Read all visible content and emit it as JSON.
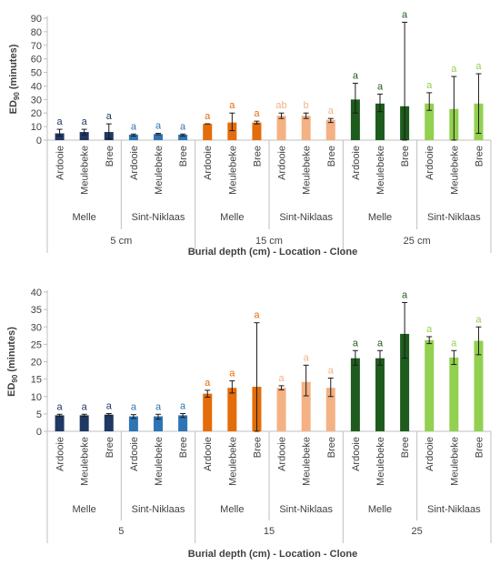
{
  "colors": {
    "5": [
      "#1f3864",
      "#2e75b6"
    ],
    "15": [
      "#e46c0a",
      "#f4b183"
    ],
    "25": [
      "#1e5c1e",
      "#92d050"
    ]
  },
  "chart_data": [
    {
      "type": "bar",
      "ylabel": "ED90 (minutes)",
      "ylabel_main": "ED",
      "ylabel_sub": "90",
      "ylabel_rest": " (minutes)",
      "xlabel": "Burial depth (cm) - Location - Clone",
      "ylim": [
        0,
        90
      ],
      "yticks": [
        0,
        10,
        20,
        30,
        40,
        50,
        60,
        70,
        80,
        90
      ],
      "depths": [
        {
          "label": "5 cm",
          "key": "5",
          "locations": [
            {
              "name": "Melle",
              "clones": [
                "Ardooie",
                "Meulebeke",
                "Bree"
              ],
              "values": [
                5,
                6,
                6
              ],
              "err_low": [
                2,
                2,
                5
              ],
              "err_high": [
                3,
                2,
                6
              ],
              "letters": [
                "a",
                "a",
                "a"
              ]
            },
            {
              "name": "Sint-Niklaas",
              "clones": [
                "Ardooie",
                "Meulebeke",
                "Bree"
              ],
              "values": [
                4,
                4.5,
                4
              ],
              "err_low": [
                1,
                0.5,
                1
              ],
              "err_high": [
                0.5,
                0.5,
                0.5
              ],
              "letters": [
                "a",
                "a",
                "a"
              ]
            }
          ]
        },
        {
          "label": "15 cm",
          "key": "15",
          "locations": [
            {
              "name": "Melle",
              "clones": [
                "Ardooie",
                "Meulebeke",
                "Bree"
              ],
              "values": [
                12,
                13,
                13
              ],
              "err_low": [
                0,
                6,
                1
              ],
              "err_high": [
                0,
                7,
                1
              ],
              "letters": [
                "a",
                "a",
                "a"
              ]
            },
            {
              "name": "Sint-Niklaas",
              "clones": [
                "Ardooie",
                "Meulebeke",
                "Bree"
              ],
              "values": [
                18,
                18,
                15
              ],
              "err_low": [
                2,
                2,
                2
              ],
              "err_high": [
                2,
                2,
                1
              ],
              "letters": [
                "ab",
                "b",
                "a"
              ]
            }
          ]
        },
        {
          "label": "25 cm",
          "key": "25",
          "locations": [
            {
              "name": "Melle",
              "clones": [
                "Ardooie",
                "Meulebeke",
                "Bree"
              ],
              "values": [
                30,
                27,
                25
              ],
              "err_low": [
                10,
                6,
                25
              ],
              "err_high": [
                12,
                7,
                62
              ],
              "letters": [
                "a",
                "a",
                "a"
              ]
            },
            {
              "name": "Sint-Niklaas",
              "clones": [
                "Ardooie",
                "Meulebeke",
                "Bree"
              ],
              "values": [
                27,
                23,
                27
              ],
              "err_low": [
                5,
                23,
                22
              ],
              "err_high": [
                8,
                24,
                22
              ],
              "letters": [
                "a",
                "a",
                "a"
              ]
            }
          ]
        }
      ]
    },
    {
      "type": "bar",
      "ylabel": "ED90 (minutes)",
      "ylabel_main": "ED",
      "ylabel_sub": "90",
      "ylabel_rest": " (minutes)",
      "xlabel": "Burial depth (cm) - Location - Clone",
      "ylim": [
        0,
        40
      ],
      "yticks": [
        0,
        5,
        10,
        15,
        20,
        25,
        30,
        35,
        40
      ],
      "depths": [
        {
          "label": "5",
          "key": "5",
          "locations": [
            {
              "name": "Melle",
              "clones": [
                "Ardooie",
                "Meulebeke",
                "Bree"
              ],
              "values": [
                4.6,
                4.6,
                4.8
              ],
              "err_low": [
                0.3,
                0.3,
                0.3
              ],
              "err_high": [
                0.3,
                0.3,
                0.3
              ],
              "letters": [
                "a",
                "a",
                "a"
              ]
            },
            {
              "name": "Sint-Niklaas",
              "clones": [
                "Ardooie",
                "Meulebeke",
                "Bree"
              ],
              "values": [
                4.3,
                4.3,
                4.6
              ],
              "err_low": [
                0.6,
                0.8,
                0.6
              ],
              "err_high": [
                0.5,
                0.6,
                0.5
              ],
              "letters": [
                "a",
                "a",
                "a"
              ]
            }
          ]
        },
        {
          "label": "15",
          "key": "15",
          "locations": [
            {
              "name": "Melle",
              "clones": [
                "Ardooie",
                "Meulebeke",
                "Bree"
              ],
              "values": [
                10.8,
                12.5,
                12.8
              ],
              "err_low": [
                1,
                1.5,
                12.8
              ],
              "err_high": [
                1,
                2,
                18.4
              ],
              "letters": [
                "a",
                "a",
                "a"
              ]
            },
            {
              "name": "Sint-Niklaas",
              "clones": [
                "Ardooie",
                "Meulebeke",
                "Bree"
              ],
              "values": [
                12.5,
                14.2,
                12.5
              ],
              "err_low": [
                0.6,
                4,
                2.5
              ],
              "err_high": [
                0.6,
                4.8,
                2.8
              ],
              "letters": [
                "a",
                "a",
                "a"
              ]
            }
          ]
        },
        {
          "label": "25",
          "key": "25",
          "locations": [
            {
              "name": "Melle",
              "clones": [
                "Ardooie",
                "Meulebeke",
                "Bree"
              ],
              "values": [
                21,
                21,
                28
              ],
              "err_low": [
                2,
                2,
                7
              ],
              "err_high": [
                2.2,
                2.2,
                9
              ],
              "letters": [
                "a",
                "a",
                "a"
              ]
            },
            {
              "name": "Sint-Niklaas",
              "clones": [
                "Ardooie",
                "Meulebeke",
                "Bree"
              ],
              "values": [
                26.2,
                21.2,
                26
              ],
              "err_low": [
                1,
                2,
                4
              ],
              "err_high": [
                1,
                2,
                4
              ],
              "letters": [
                "a",
                "a",
                "a"
              ]
            }
          ]
        }
      ]
    }
  ]
}
